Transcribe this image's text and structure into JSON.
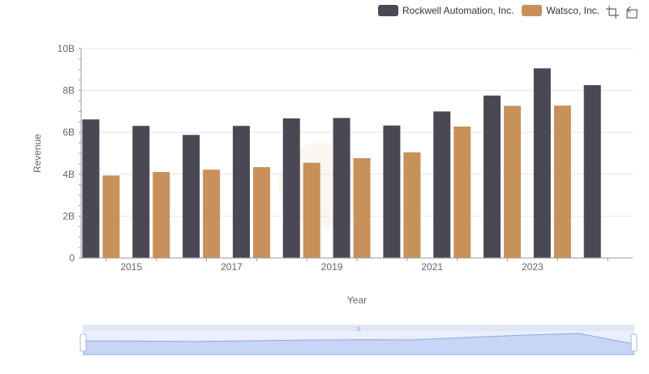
{
  "legend": {
    "items": [
      {
        "label": "Rockwell Automation, Inc.",
        "color": "#4a4953"
      },
      {
        "label": "Watsco, Inc.",
        "color": "#c8915c"
      }
    ]
  },
  "toolbox": {
    "icons": [
      "zoom-icon",
      "restore-icon"
    ]
  },
  "chart_data": {
    "type": "bar",
    "xlabel": "Year",
    "ylabel": "Revenue",
    "ylim": [
      0,
      10
    ],
    "y_ticks": [
      "0",
      "2B",
      "4B",
      "6B",
      "8B",
      "10B"
    ],
    "x_tick_labels": [
      "2015",
      "2017",
      "2019",
      "2021",
      "2023"
    ],
    "categories": [
      "2014",
      "2015",
      "2016",
      "2017",
      "2018",
      "2019",
      "2020",
      "2021",
      "2022",
      "2023",
      "2024"
    ],
    "series": [
      {
        "name": "Rockwell Automation, Inc.",
        "color": "#4a4953",
        "values": [
          6.62,
          6.31,
          5.88,
          6.31,
          6.67,
          6.69,
          6.33,
          7.0,
          7.76,
          9.06,
          8.26
        ]
      },
      {
        "name": "Watsco, Inc.",
        "color": "#c8915c",
        "values": [
          3.94,
          4.11,
          4.22,
          4.34,
          4.55,
          4.77,
          5.05,
          6.28,
          7.27,
          7.28,
          null
        ]
      }
    ],
    "grid": true,
    "legend_position": "top-right"
  }
}
